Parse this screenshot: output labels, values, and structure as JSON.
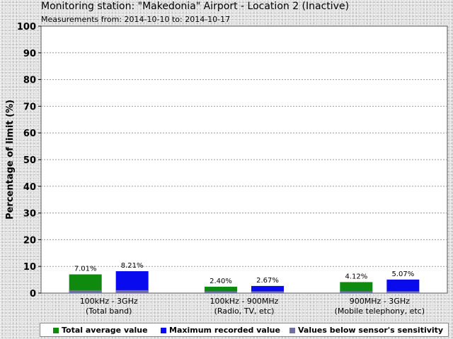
{
  "header": {
    "title": "Monitoring station: \"Makedonia\" Airport - Location 2  (Inactive)",
    "subtitle": "Measurements from: 2014-10-10 to: 2014-10-17"
  },
  "chart_data": {
    "type": "bar",
    "ylabel": "Percentage of limit (%)",
    "ylim": [
      0,
      100
    ],
    "yticks": [
      "0",
      "10",
      "20",
      "30",
      "40",
      "50",
      "60",
      "70",
      "80",
      "90",
      "100"
    ],
    "grid": true,
    "categories": [
      {
        "line1": "100kHz - 3GHz",
        "line2": "(Total band)"
      },
      {
        "line1": "100kHz - 900MHz",
        "line2": "(Radio, TV, etc)"
      },
      {
        "line1": "900MHz - 3GHz",
        "line2": "(Mobile telephony, etc)"
      }
    ],
    "series": [
      {
        "name": "Total average value",
        "color": "#0f8a0f",
        "values": [
          7.01,
          2.4,
          4.12
        ],
        "labels": [
          "7.01%",
          "2.40%",
          "4.12%"
        ]
      },
      {
        "name": "Maximum recorded value",
        "color": "#0a0aee",
        "values": [
          8.21,
          2.67,
          5.07
        ],
        "labels": [
          "8.21%",
          "2.67%",
          "5.07%"
        ]
      },
      {
        "name": "Values below sensor's sensitivity",
        "color": "#7070a0",
        "values": [
          1.1,
          0.7,
          0.7
        ]
      }
    ],
    "legend": "bottom"
  }
}
